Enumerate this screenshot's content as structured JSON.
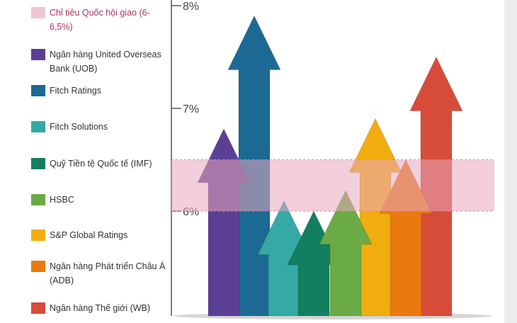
{
  "chart_data": {
    "type": "bar",
    "title": "",
    "xlabel": "",
    "ylabel": "",
    "ylim": [
      5,
      8
    ],
    "yticks": [
      {
        "value": 8,
        "label": "8%"
      },
      {
        "value": 7,
        "label": "7%"
      },
      {
        "value": 6,
        "label": "6%"
      }
    ],
    "target_band": {
      "label": "Chỉ tiêu Quốc hội giao (6-6,5%)",
      "low": 6,
      "high": 6.5,
      "color": "#e8a7bd"
    },
    "series": [
      {
        "name": "Ngân hàng United Overseas Bank (UOB)",
        "value": 6.8,
        "color": "#5b3f95"
      },
      {
        "name": "Fitch Ratings",
        "value": 7.9,
        "color": "#1c6a94"
      },
      {
        "name": "Fitch Solutions",
        "value": 6.1,
        "color": "#35a9a5"
      },
      {
        "name": "Quỹ Tiền tệ Quốc tế (IMF)",
        "value": 6.0,
        "color": "#128060"
      },
      {
        "name": "HSBC",
        "value": 6.2,
        "color": "#6aab45"
      },
      {
        "name": "S&P Global Ratings",
        "value": 6.9,
        "color": "#f1ad0f"
      },
      {
        "name": "Ngân hàng Phát triển Châu Á (ADB)",
        "value": 6.5,
        "color": "#e97a10"
      },
      {
        "name": "Ngân hàng Thế giới (WB)",
        "value": 7.5,
        "color": "#d74c38"
      }
    ]
  },
  "legend": {
    "items": [
      {
        "label": "Chỉ tiêu Quốc hội giao (6-6,5%)",
        "color": "#f0c5d3"
      },
      {
        "label": "Ngân hàng United Overseas Bank (UOB)",
        "color": "#5b3f95"
      },
      {
        "label": "Fitch Ratings",
        "color": "#1c6a94"
      },
      {
        "label": "Fitch Solutions",
        "color": "#35a9a5"
      },
      {
        "label": "Quỹ Tiền tệ Quốc tế (IMF)",
        "color": "#128060"
      },
      {
        "label": "HSBC",
        "color": "#6aab45"
      },
      {
        "label": "S&P Global Ratings",
        "color": "#f1ad0f"
      },
      {
        "label": "Ngân hàng Phát triển Châu Á (ADB)",
        "color": "#e97a10"
      },
      {
        "label": "Ngân hàng Thế giới (WB)",
        "color": "#d74c38"
      }
    ]
  }
}
